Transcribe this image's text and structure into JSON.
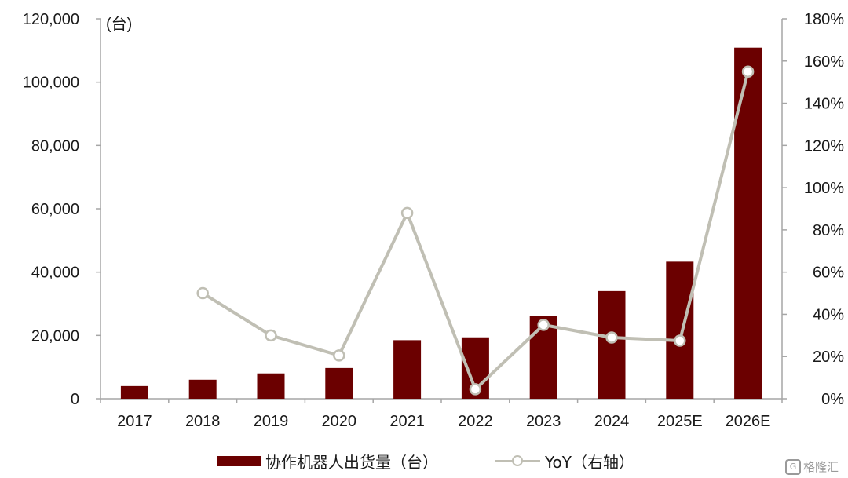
{
  "chart_data": {
    "type": "bar",
    "categories": [
      "2017",
      "2018",
      "2019",
      "2020",
      "2021",
      "2022",
      "2023",
      "2024",
      "2025E",
      "2026E"
    ],
    "series": [
      {
        "name": "协作机器人出货量（台）",
        "type": "bar",
        "axis": "left",
        "color": "#6b0000",
        "values": [
          4000,
          6000,
          8000,
          9700,
          18500,
          19400,
          26200,
          34000,
          43300,
          110900
        ]
      },
      {
        "name": "YoY（右轴）",
        "type": "line",
        "axis": "right",
        "color": "#c0bfb4",
        "values": [
          null,
          50,
          30,
          20.5,
          88,
          4.5,
          35,
          29,
          27.5,
          155
        ]
      }
    ],
    "left_axis": {
      "unit_label": "(台)",
      "ylim": [
        0,
        120000
      ],
      "ticks": [
        "0",
        "20,000",
        "40,000",
        "60,000",
        "80,000",
        "100,000",
        "120,000"
      ]
    },
    "right_axis": {
      "ylim": [
        0,
        180
      ],
      "ticks": [
        "0%",
        "20%",
        "40%",
        "60%",
        "80%",
        "100%",
        "120%",
        "140%",
        "160%",
        "180%"
      ]
    },
    "grid": false,
    "legend_position": "bottom"
  },
  "legend": {
    "bar_label": "协作机器人出货量（台）",
    "line_label": "YoY（右轴）"
  },
  "watermark": {
    "icon_glyph": "G",
    "text": "格隆汇"
  }
}
